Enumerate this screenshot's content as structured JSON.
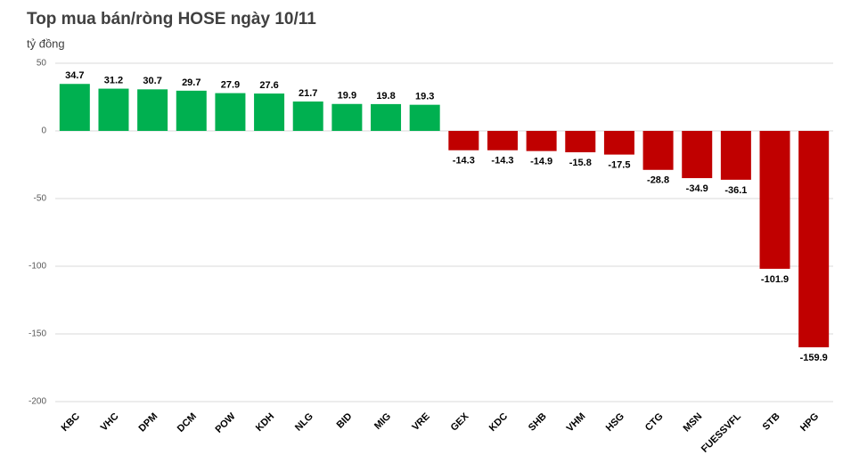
{
  "chart_data": {
    "type": "bar",
    "title": "Top mua bán/ròng HOSE ngày 10/11",
    "y_label": "tỷ đồng",
    "categories": [
      "KBC",
      "VHC",
      "DPM",
      "DCM",
      "POW",
      "KDH",
      "NLG",
      "BID",
      "MIG",
      "VRE",
      "GEX",
      "KDC",
      "SHB",
      "VHM",
      "HSG",
      "CTG",
      "MSN",
      "FUESSVFL",
      "STB",
      "HPG"
    ],
    "values": [
      34.7,
      31.2,
      30.7,
      29.7,
      27.9,
      27.6,
      21.7,
      19.9,
      19.8,
      19.3,
      -14.3,
      -14.3,
      -14.9,
      -15.8,
      -17.5,
      -28.8,
      -34.9,
      -36.1,
      -101.9,
      -159.9
    ],
    "positive_color": "#00b050",
    "negative_color": "#c00000",
    "ylim": [
      -200,
      50
    ],
    "yticks": [
      -200,
      -150,
      -100,
      -50,
      0,
      50
    ],
    "grid": true
  }
}
